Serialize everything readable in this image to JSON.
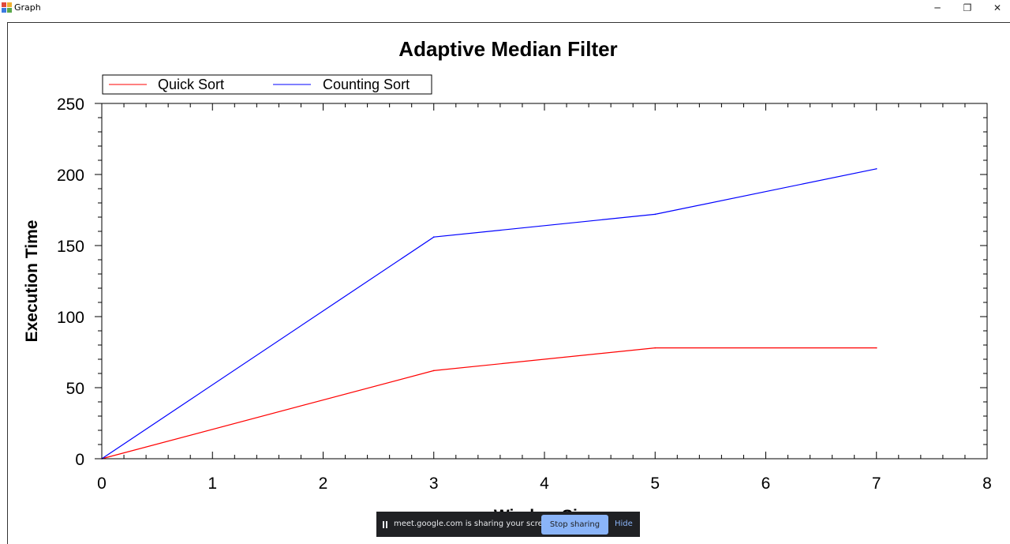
{
  "window": {
    "title": "Graph",
    "controls": {
      "minimize": "─",
      "restore": "❐",
      "close": "✕"
    }
  },
  "chart_data": {
    "type": "line",
    "title": "Adaptive Median Filter",
    "xlabel": "Window Size",
    "ylabel": "Execution Time",
    "xlim": [
      0,
      8
    ],
    "ylim": [
      0,
      250
    ],
    "xticks": [
      "0",
      "1",
      "2",
      "3",
      "4",
      "5",
      "6",
      "7",
      "8"
    ],
    "yticks": [
      "0",
      "50",
      "100",
      "150",
      "200",
      "250"
    ],
    "legend_position": "top-left",
    "grid": false,
    "series": [
      {
        "name": "Quick Sort",
        "color": "#ff0000",
        "x": [
          0,
          3,
          5,
          7
        ],
        "y": [
          0,
          62,
          78,
          78
        ]
      },
      {
        "name": "Counting Sort",
        "color": "#0000ff",
        "x": [
          0,
          3,
          5,
          7
        ],
        "y": [
          0,
          156,
          172,
          204
        ]
      }
    ]
  },
  "share_bar": {
    "message": "meet.google.com is sharing your screen.",
    "stop_label": "Stop sharing",
    "hide_label": "Hide"
  }
}
